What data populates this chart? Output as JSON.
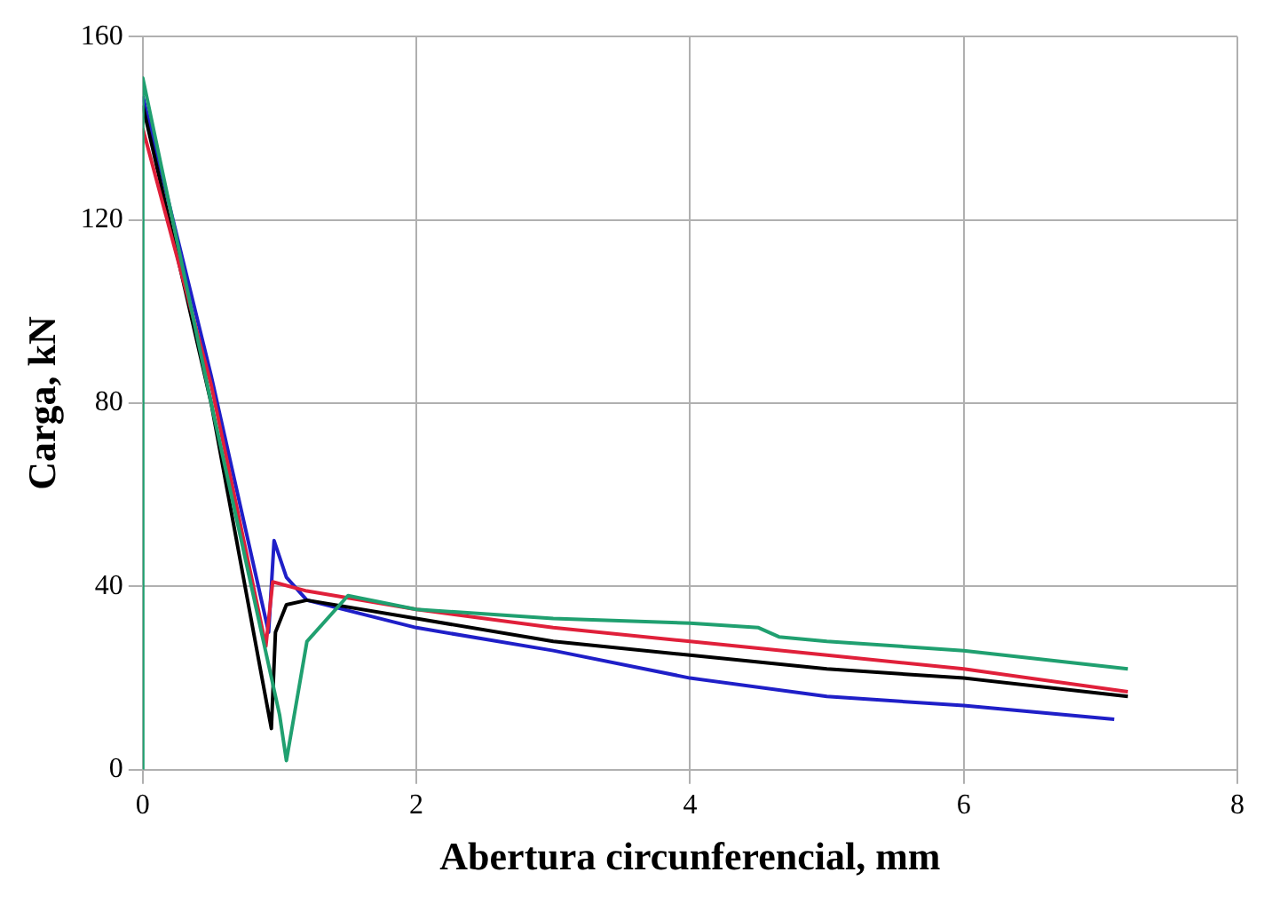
{
  "chart_data": {
    "type": "line",
    "xlabel": "Abertura circunferencial, mm",
    "ylabel": "Carga, kN",
    "xlim": [
      0,
      8
    ],
    "xticks": [
      0,
      2,
      4,
      6,
      8
    ],
    "ylim": [
      0,
      160
    ],
    "yticks": [
      0,
      40,
      80,
      120,
      160
    ],
    "grid": true,
    "legend": false,
    "marker": "none",
    "series": [
      {
        "color": "#20a070",
        "x": [
          0,
          0,
          0.5,
          1.0,
          1.05,
          1.2,
          1.5,
          2,
          3,
          4,
          4.5,
          4.65,
          5,
          6,
          7.2
        ],
        "values": [
          0,
          151,
          80,
          12,
          2,
          28,
          38,
          35,
          33,
          32,
          31,
          29,
          28,
          26,
          22
        ]
      },
      {
        "color": "#e0203a",
        "x": [
          0,
          0.5,
          0.9,
          0.95,
          1.2,
          2,
          3,
          4,
          5,
          6,
          7.2
        ],
        "values": [
          140,
          84,
          27,
          41,
          39,
          35,
          31,
          28,
          25,
          22,
          17
        ]
      },
      {
        "color": "#000000",
        "x": [
          0,
          0.5,
          0.94,
          0.97,
          1.05,
          1.2,
          2,
          3,
          4,
          5,
          6,
          7.2
        ],
        "values": [
          145,
          80,
          9,
          30,
          36,
          37,
          33,
          28,
          25,
          22,
          20,
          16
        ]
      },
      {
        "color": "#1f1fc8",
        "x": [
          0,
          0.5,
          0.92,
          0.96,
          1.05,
          1.2,
          2,
          3,
          4,
          5,
          6,
          7.1
        ],
        "values": [
          147,
          86,
          30,
          50,
          42,
          37,
          31,
          26,
          20,
          16,
          14,
          11
        ]
      }
    ]
  }
}
